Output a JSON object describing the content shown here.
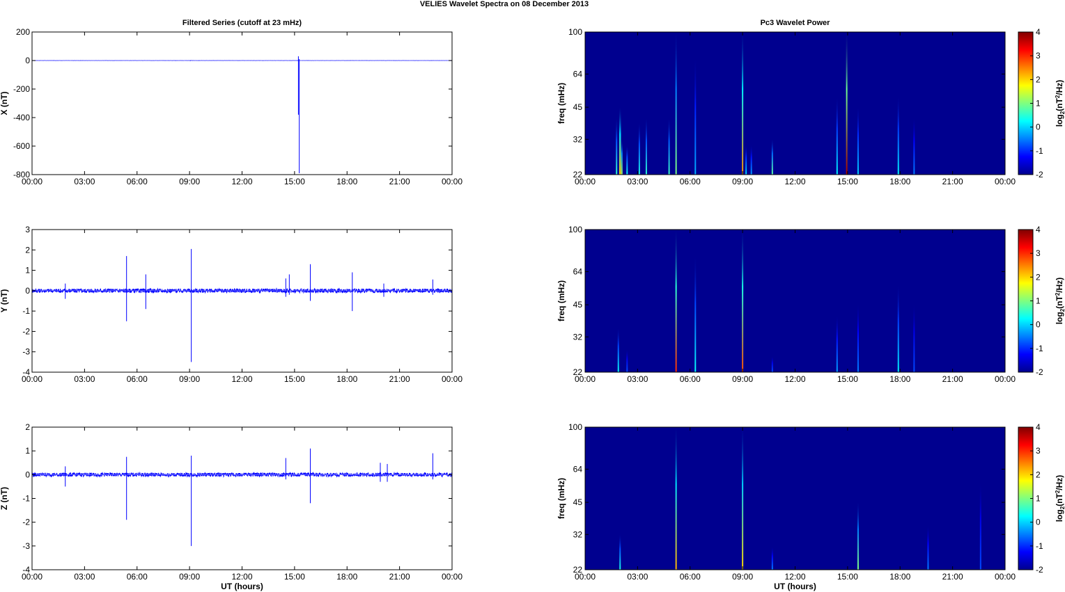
{
  "figure": {
    "suptitle": "VELIES Wavelet Spectra on 08 December  2013"
  },
  "colors": {
    "trace": "#0000ff",
    "zero_line": "#7f7fff",
    "axes": "#000000",
    "background": "#00008f"
  },
  "chart_data": [
    {
      "type": "line",
      "title": "Filtered Series (cutoff at 23 mHz)",
      "xlabel": "",
      "ylabel": "X (nT)",
      "xlim": [
        0,
        24
      ],
      "ylim": [
        -800,
        200
      ],
      "yticks": [
        "-800",
        "-600",
        "-400",
        "-200",
        "0",
        "200"
      ],
      "xticks": [
        "00:00",
        "03:00",
        "06:00",
        "09:00",
        "12:00",
        "15:00",
        "18:00",
        "21:00",
        "00:00"
      ],
      "noise_amplitude": 0.6,
      "spikes": [
        {
          "t": 9.05,
          "min": -3,
          "max": 2
        },
        {
          "t": 15.22,
          "min": -380,
          "max": 30
        },
        {
          "t": 15.27,
          "min": -790,
          "max": 10
        }
      ]
    },
    {
      "type": "line",
      "title": "",
      "xlabel": "",
      "ylabel": "Y (nT)",
      "xlim": [
        0,
        24
      ],
      "ylim": [
        -4,
        3
      ],
      "yticks": [
        "-4",
        "-3",
        "-2",
        "-1",
        "0",
        "1",
        "2",
        "3"
      ],
      "xticks": [
        "00:00",
        "03:00",
        "06:00",
        "09:00",
        "12:00",
        "15:00",
        "18:00",
        "21:00",
        "00:00"
      ],
      "noise_amplitude": 0.1,
      "spikes": [
        {
          "t": 1.9,
          "min": -0.4,
          "max": 0.35
        },
        {
          "t": 5.4,
          "min": -1.5,
          "max": 1.7
        },
        {
          "t": 6.5,
          "min": -0.9,
          "max": 0.8
        },
        {
          "t": 9.1,
          "min": -3.5,
          "max": 2.05
        },
        {
          "t": 14.5,
          "min": -0.3,
          "max": 0.6
        },
        {
          "t": 14.7,
          "min": -0.2,
          "max": 0.8
        },
        {
          "t": 15.9,
          "min": -0.5,
          "max": 1.3
        },
        {
          "t": 18.3,
          "min": -1.0,
          "max": 0.9
        },
        {
          "t": 20.1,
          "min": -0.3,
          "max": 0.35
        },
        {
          "t": 22.9,
          "min": -0.2,
          "max": 0.55
        }
      ]
    },
    {
      "type": "line",
      "title": "",
      "xlabel": "UT (hours)",
      "ylabel": "Z (nT)",
      "xlim": [
        0,
        24
      ],
      "ylim": [
        -4,
        2
      ],
      "yticks": [
        "-4",
        "-3",
        "-2",
        "-1",
        "0",
        "1",
        "2"
      ],
      "xticks": [
        "00:00",
        "03:00",
        "06:00",
        "09:00",
        "12:00",
        "15:00",
        "18:00",
        "21:00",
        "00:00"
      ],
      "noise_amplitude": 0.08,
      "spikes": [
        {
          "t": 1.9,
          "min": -0.5,
          "max": 0.35
        },
        {
          "t": 5.4,
          "min": -1.9,
          "max": 0.75
        },
        {
          "t": 9.1,
          "min": -3.0,
          "max": 0.8
        },
        {
          "t": 14.5,
          "min": -0.2,
          "max": 0.7
        },
        {
          "t": 15.9,
          "min": -1.2,
          "max": 1.1
        },
        {
          "t": 19.9,
          "min": -0.3,
          "max": 0.5
        },
        {
          "t": 20.3,
          "min": -0.3,
          "max": 0.45
        },
        {
          "t": 22.9,
          "min": -0.2,
          "max": 0.9
        }
      ]
    },
    {
      "type": "heatmap",
      "title": "Pc3 Wavelet Power",
      "xlabel": "",
      "ylabel": "freq (mHz)",
      "xlim": [
        0,
        24
      ],
      "ylim": [
        22,
        100
      ],
      "yticks": [
        "22",
        "32",
        "45",
        "64",
        "100"
      ],
      "xticks": [
        "00:00",
        "03:00",
        "06:00",
        "09:00",
        "12:00",
        "15:00",
        "18:00",
        "21:00",
        "00:00"
      ],
      "clim": [
        -2,
        4
      ],
      "colorbar_ticks": [
        "-2",
        "-1",
        "0",
        "1",
        "2",
        "3",
        "4"
      ],
      "colorbar_label": "log2(nT2/Hz)",
      "background_level": -2,
      "bursts": [
        {
          "t": 1.8,
          "f": 40,
          "w": 0.05,
          "v": 0.5
        },
        {
          "t": 2.0,
          "f": 45,
          "w": 0.1,
          "v": 2.0
        },
        {
          "t": 2.1,
          "f": 32,
          "w": 0.08,
          "v": 1.2
        },
        {
          "t": 2.4,
          "f": 30,
          "w": 0.05,
          "v": 0.3
        },
        {
          "t": 3.1,
          "f": 38,
          "w": 0.05,
          "v": 0.4
        },
        {
          "t": 3.5,
          "f": 40,
          "w": 0.05,
          "v": 0.5
        },
        {
          "t": 4.8,
          "f": 40,
          "w": 0.05,
          "v": 0.6
        },
        {
          "t": 5.2,
          "f": 100,
          "w": 0.04,
          "v": 1.0
        },
        {
          "t": 6.3,
          "f": 75,
          "w": 0.05,
          "v": -0.2
        },
        {
          "t": 9.0,
          "f": 100,
          "w": 0.04,
          "v": 2.4
        },
        {
          "t": 9.2,
          "f": 30,
          "w": 0.05,
          "v": 0.0
        },
        {
          "t": 9.5,
          "f": 30,
          "w": 0.05,
          "v": -0.3
        },
        {
          "t": 10.7,
          "f": 32,
          "w": 0.08,
          "v": 0.8
        },
        {
          "t": 14.4,
          "f": 50,
          "w": 0.05,
          "v": 0.2
        },
        {
          "t": 14.95,
          "f": 100,
          "w": 0.05,
          "v": 3.8
        },
        {
          "t": 15.6,
          "f": 45,
          "w": 0.05,
          "v": 0.0
        },
        {
          "t": 17.9,
          "f": 50,
          "w": 0.05,
          "v": 0.2
        },
        {
          "t": 18.8,
          "f": 40,
          "w": 0.05,
          "v": -0.5
        }
      ]
    },
    {
      "type": "heatmap",
      "title": "",
      "xlabel": "",
      "ylabel": "freq (mHz)",
      "xlim": [
        0,
        24
      ],
      "ylim": [
        22,
        100
      ],
      "yticks": [
        "22",
        "32",
        "45",
        "64",
        "100"
      ],
      "xticks": [
        "00:00",
        "03:00",
        "06:00",
        "09:00",
        "12:00",
        "15:00",
        "18:00",
        "21:00",
        "00:00"
      ],
      "clim": [
        -2,
        4
      ],
      "colorbar_ticks": [
        "-2",
        "-1",
        "0",
        "1",
        "2",
        "3",
        "4"
      ],
      "colorbar_label": "log2(nT2/Hz)",
      "background_level": -2,
      "bursts": [
        {
          "t": 1.9,
          "f": 35,
          "w": 0.06,
          "v": 0.3
        },
        {
          "t": 2.4,
          "f": 28,
          "w": 0.04,
          "v": -0.8
        },
        {
          "t": 5.2,
          "f": 100,
          "w": 0.04,
          "v": 3.0
        },
        {
          "t": 6.3,
          "f": 75,
          "w": 0.05,
          "v": 0.3
        },
        {
          "t": 9.0,
          "f": 100,
          "w": 0.04,
          "v": 2.8
        },
        {
          "t": 10.7,
          "f": 26,
          "w": 0.04,
          "v": -0.8
        },
        {
          "t": 14.4,
          "f": 40,
          "w": 0.05,
          "v": -0.3
        },
        {
          "t": 15.6,
          "f": 45,
          "w": 0.05,
          "v": -0.5
        },
        {
          "t": 17.9,
          "f": 55,
          "w": 0.05,
          "v": 0.2
        },
        {
          "t": 18.8,
          "f": 45,
          "w": 0.05,
          "v": -0.8
        }
      ]
    },
    {
      "type": "heatmap",
      "title": "",
      "xlabel": "UT (hours)",
      "ylabel": "freq (mHz)",
      "xlim": [
        0,
        24
      ],
      "ylim": [
        22,
        100
      ],
      "yticks": [
        "22",
        "32",
        "45",
        "64",
        "100"
      ],
      "xticks": [
        "00:00",
        "03:00",
        "06:00",
        "09:00",
        "12:00",
        "15:00",
        "18:00",
        "21:00",
        "00:00"
      ],
      "clim": [
        -2,
        4
      ],
      "colorbar_ticks": [
        "-2",
        "-1",
        "0",
        "1",
        "2",
        "3",
        "4"
      ],
      "colorbar_label": "log2(nT2/Hz)",
      "background_level": -2,
      "bursts": [
        {
          "t": 2.0,
          "f": 32,
          "w": 0.06,
          "v": 0.4
        },
        {
          "t": 5.2,
          "f": 100,
          "w": 0.04,
          "v": 2.2
        },
        {
          "t": 9.0,
          "f": 100,
          "w": 0.04,
          "v": 2.0
        },
        {
          "t": 10.7,
          "f": 28,
          "w": 0.04,
          "v": -0.5
        },
        {
          "t": 15.6,
          "f": 45,
          "w": 0.05,
          "v": 1.0
        },
        {
          "t": 19.6,
          "f": 35,
          "w": 0.05,
          "v": -0.5
        },
        {
          "t": 22.6,
          "f": 55,
          "w": 0.05,
          "v": -0.8
        }
      ]
    }
  ]
}
